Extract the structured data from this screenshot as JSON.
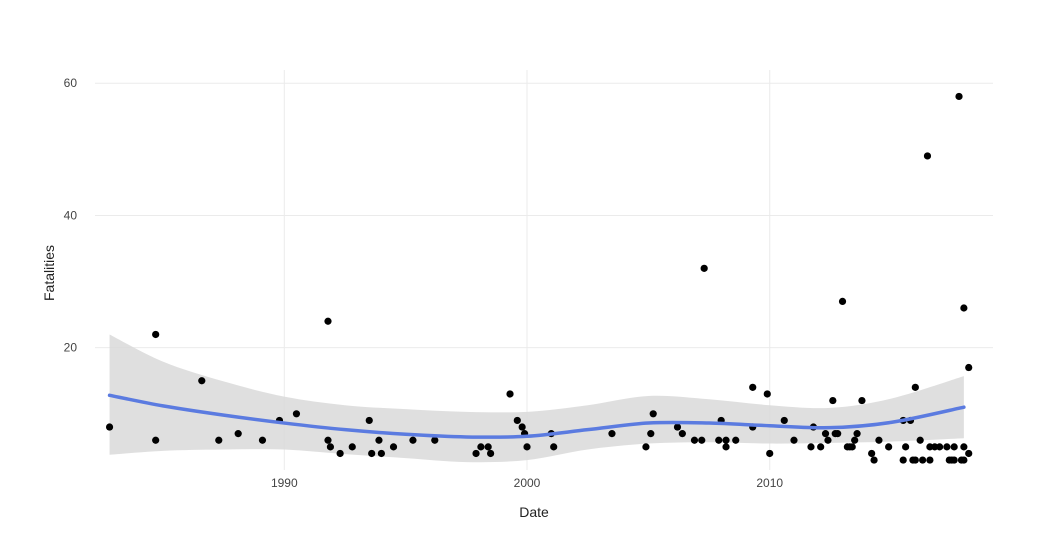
{
  "chart_data": {
    "type": "scatter",
    "title": "",
    "xlabel": "Date",
    "ylabel": "Fatalities",
    "xlim": [
      1982.2,
      2019.2
    ],
    "ylim": [
      1.5,
      62
    ],
    "x_ticks": [
      {
        "value": 1990,
        "label": "1990"
      },
      {
        "value": 2000,
        "label": "2000"
      },
      {
        "value": 2010,
        "label": "2010"
      }
    ],
    "y_ticks": [
      {
        "value": 20,
        "label": "20"
      },
      {
        "value": 40,
        "label": "40"
      },
      {
        "value": 60,
        "label": "60"
      }
    ],
    "grid": true,
    "point_color": "#000000",
    "smooth_color": "#5b7be0",
    "ribbon_color": "#d9d9d9",
    "points": [
      {
        "x": 1982.8,
        "y": 8
      },
      {
        "x": 1984.7,
        "y": 22
      },
      {
        "x": 1984.7,
        "y": 6
      },
      {
        "x": 1986.6,
        "y": 15
      },
      {
        "x": 1987.3,
        "y": 6
      },
      {
        "x": 1988.1,
        "y": 7
      },
      {
        "x": 1989.1,
        "y": 6
      },
      {
        "x": 1989.8,
        "y": 9
      },
      {
        "x": 1990.5,
        "y": 10
      },
      {
        "x": 1991.8,
        "y": 24
      },
      {
        "x": 1991.8,
        "y": 6
      },
      {
        "x": 1991.9,
        "y": 5
      },
      {
        "x": 1992.3,
        "y": 4
      },
      {
        "x": 1992.8,
        "y": 5
      },
      {
        "x": 1993.5,
        "y": 9
      },
      {
        "x": 1993.6,
        "y": 4
      },
      {
        "x": 1993.9,
        "y": 6
      },
      {
        "x": 1994.0,
        "y": 4
      },
      {
        "x": 1994.5,
        "y": 5
      },
      {
        "x": 1995.3,
        "y": 6
      },
      {
        "x": 1996.2,
        "y": 6
      },
      {
        "x": 1997.9,
        "y": 4
      },
      {
        "x": 1998.1,
        "y": 5
      },
      {
        "x": 1998.4,
        "y": 5
      },
      {
        "x": 1998.5,
        "y": 4
      },
      {
        "x": 1999.3,
        "y": 13
      },
      {
        "x": 1999.6,
        "y": 9
      },
      {
        "x": 1999.8,
        "y": 8
      },
      {
        "x": 1999.9,
        "y": 7
      },
      {
        "x": 2000.0,
        "y": 5
      },
      {
        "x": 2001.0,
        "y": 7
      },
      {
        "x": 2001.1,
        "y": 5
      },
      {
        "x": 2003.5,
        "y": 7
      },
      {
        "x": 2004.9,
        "y": 5
      },
      {
        "x": 2005.1,
        "y": 7
      },
      {
        "x": 2005.2,
        "y": 10
      },
      {
        "x": 2006.2,
        "y": 8
      },
      {
        "x": 2006.4,
        "y": 7
      },
      {
        "x": 2006.9,
        "y": 6
      },
      {
        "x": 2007.3,
        "y": 32
      },
      {
        "x": 2007.2,
        "y": 6
      },
      {
        "x": 2007.9,
        "y": 6
      },
      {
        "x": 2008.0,
        "y": 9
      },
      {
        "x": 2008.2,
        "y": 6
      },
      {
        "x": 2008.2,
        "y": 5
      },
      {
        "x": 2008.6,
        "y": 6
      },
      {
        "x": 2009.3,
        "y": 14
      },
      {
        "x": 2009.3,
        "y": 8
      },
      {
        "x": 2009.9,
        "y": 13
      },
      {
        "x": 2010.0,
        "y": 4
      },
      {
        "x": 2010.6,
        "y": 9
      },
      {
        "x": 2011.0,
        "y": 6
      },
      {
        "x": 2011.7,
        "y": 5
      },
      {
        "x": 2011.8,
        "y": 8
      },
      {
        "x": 2012.1,
        "y": 5
      },
      {
        "x": 2012.3,
        "y": 7
      },
      {
        "x": 2012.4,
        "y": 6
      },
      {
        "x": 2012.6,
        "y": 12
      },
      {
        "x": 2012.7,
        "y": 7
      },
      {
        "x": 2012.8,
        "y": 7
      },
      {
        "x": 2013.0,
        "y": 27
      },
      {
        "x": 2013.2,
        "y": 5
      },
      {
        "x": 2013.3,
        "y": 5
      },
      {
        "x": 2013.4,
        "y": 5
      },
      {
        "x": 2013.5,
        "y": 6
      },
      {
        "x": 2013.6,
        "y": 7
      },
      {
        "x": 2013.8,
        "y": 12
      },
      {
        "x": 2014.2,
        "y": 4
      },
      {
        "x": 2014.3,
        "y": 3
      },
      {
        "x": 2014.5,
        "y": 6
      },
      {
        "x": 2014.9,
        "y": 5
      },
      {
        "x": 2015.5,
        "y": 9
      },
      {
        "x": 2015.5,
        "y": 3
      },
      {
        "x": 2015.6,
        "y": 5
      },
      {
        "x": 2015.8,
        "y": 9
      },
      {
        "x": 2015.9,
        "y": 3
      },
      {
        "x": 2016.0,
        "y": 14
      },
      {
        "x": 2016.0,
        "y": 3
      },
      {
        "x": 2016.2,
        "y": 6
      },
      {
        "x": 2016.3,
        "y": 3
      },
      {
        "x": 2016.5,
        "y": 49
      },
      {
        "x": 2016.6,
        "y": 5
      },
      {
        "x": 2016.6,
        "y": 3
      },
      {
        "x": 2016.8,
        "y": 5
      },
      {
        "x": 2017.0,
        "y": 5
      },
      {
        "x": 2017.3,
        "y": 5
      },
      {
        "x": 2017.4,
        "y": 3
      },
      {
        "x": 2017.5,
        "y": 3
      },
      {
        "x": 2017.6,
        "y": 5
      },
      {
        "x": 2017.6,
        "y": 3
      },
      {
        "x": 2017.8,
        "y": 58
      },
      {
        "x": 2017.9,
        "y": 3
      },
      {
        "x": 2018.0,
        "y": 26
      },
      {
        "x": 2018.0,
        "y": 5
      },
      {
        "x": 2018.0,
        "y": 3
      },
      {
        "x": 2018.2,
        "y": 17
      },
      {
        "x": 2018.2,
        "y": 4
      }
    ],
    "smooth": {
      "x": [
        1982.8,
        1985,
        1987.5,
        1990,
        1992.5,
        1995,
        1997.5,
        2000,
        2002.5,
        2005,
        2007.5,
        2010,
        2012.5,
        2015,
        2018
      ],
      "y": [
        12.8,
        11.2,
        9.8,
        8.6,
        7.6,
        6.9,
        6.5,
        6.6,
        7.6,
        8.6,
        8.6,
        8.2,
        7.9,
        8.7,
        11.0
      ],
      "lower": [
        3.8,
        4.4,
        4.6,
        4.6,
        3.9,
        3.3,
        2.7,
        3.0,
        4.6,
        5.5,
        5.7,
        5.5,
        5.6,
        5.8,
        6.3
      ],
      "upper": [
        22.0,
        17.9,
        14.9,
        12.6,
        11.3,
        10.7,
        10.3,
        10.3,
        11.3,
        12.7,
        12.2,
        11.3,
        10.9,
        12.3,
        15.7
      ]
    }
  }
}
